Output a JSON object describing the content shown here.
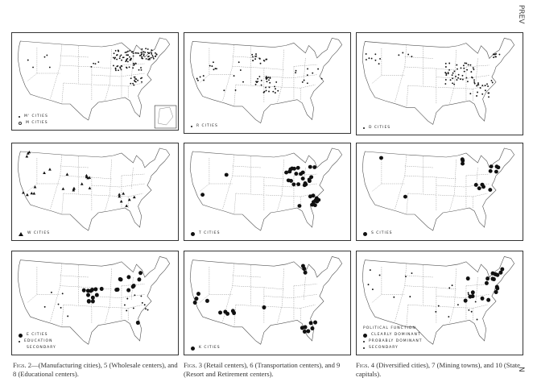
{
  "side_labels": {
    "prev": "PREV",
    "next": "N"
  },
  "panels": [
    {
      "legend": [
        {
          "marker": "small-dot",
          "label": "M' cities"
        },
        {
          "marker": "open-dot",
          "label": "M cities"
        }
      ],
      "inset": true
    },
    {
      "legend": [
        {
          "marker": "small-dot",
          "label": "R cities"
        }
      ]
    },
    {
      "legend": [
        {
          "marker": "small-dot",
          "label": "D cities"
        }
      ]
    },
    {
      "legend": [
        {
          "marker": "triangle",
          "label": "W cities"
        }
      ]
    },
    {
      "legend": [
        {
          "marker": "large-dot",
          "label": "T cities"
        }
      ]
    },
    {
      "legend": [
        {
          "marker": "large-dot",
          "label": "S cities"
        }
      ]
    },
    {
      "legend": [
        {
          "marker": "large-dot",
          "label": "E cities"
        },
        {
          "marker": "small-dot",
          "label": "Education"
        },
        {
          "marker": "none",
          "label": "Secondary"
        }
      ]
    },
    {
      "legend": [
        {
          "marker": "large-dot",
          "label": "K cities"
        }
      ]
    },
    {
      "legend_title": "Political function",
      "legend": [
        {
          "marker": "large-dot",
          "label": "Clearly dominant"
        },
        {
          "marker": "small-dot",
          "label": "Probably dominant"
        },
        {
          "marker": "small-dot",
          "label": "Secondary"
        }
      ]
    }
  ],
  "captions": [
    {
      "fig": "Figs.",
      "text": " 2—(Manufacturing cities), 5 (Wholesale centers), and 8 (Educational centers)."
    },
    {
      "fig": "Figs.",
      "text": " 3 (Retail centers), 6 (Transportation centers), and 9 (Resort and Retirement centers)."
    },
    {
      "fig": "Figs.",
      "text": " 4 (Diversified cities), 7 (Mining towns), and 10 (State capitals)."
    }
  ]
}
